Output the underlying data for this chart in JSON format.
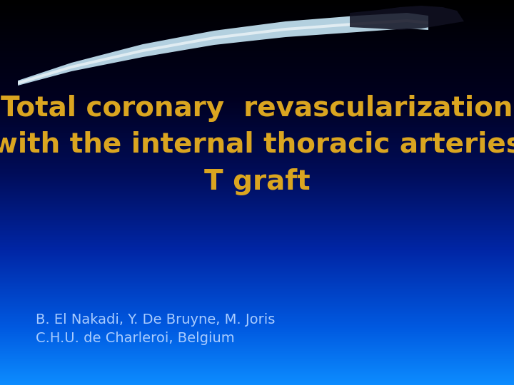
{
  "title_line1": "Total coronary  revascularization",
  "title_line2": "with the internal thoracic arteries",
  "title_line3": "T graft",
  "title_color": "#DAA520",
  "title_fontsize": 28,
  "subtitle_line1": "B. El Nakadi, Y. De Bruyne, M. Joris",
  "subtitle_line2": "C.H.U. de Charleroi, Belgium",
  "subtitle_color": "#AACCFF",
  "subtitle_fontsize": 14,
  "gradient_stops": [
    [
      0.0,
      [
        0.0,
        0.0,
        0.0
      ]
    ],
    [
      0.25,
      [
        0.0,
        0.0,
        0.12
      ]
    ],
    [
      0.45,
      [
        0.0,
        0.05,
        0.35
      ]
    ],
    [
      0.65,
      [
        0.0,
        0.15,
        0.65
      ]
    ],
    [
      0.85,
      [
        0.0,
        0.35,
        0.88
      ]
    ],
    [
      1.0,
      [
        0.05,
        0.55,
        1.0
      ]
    ]
  ]
}
